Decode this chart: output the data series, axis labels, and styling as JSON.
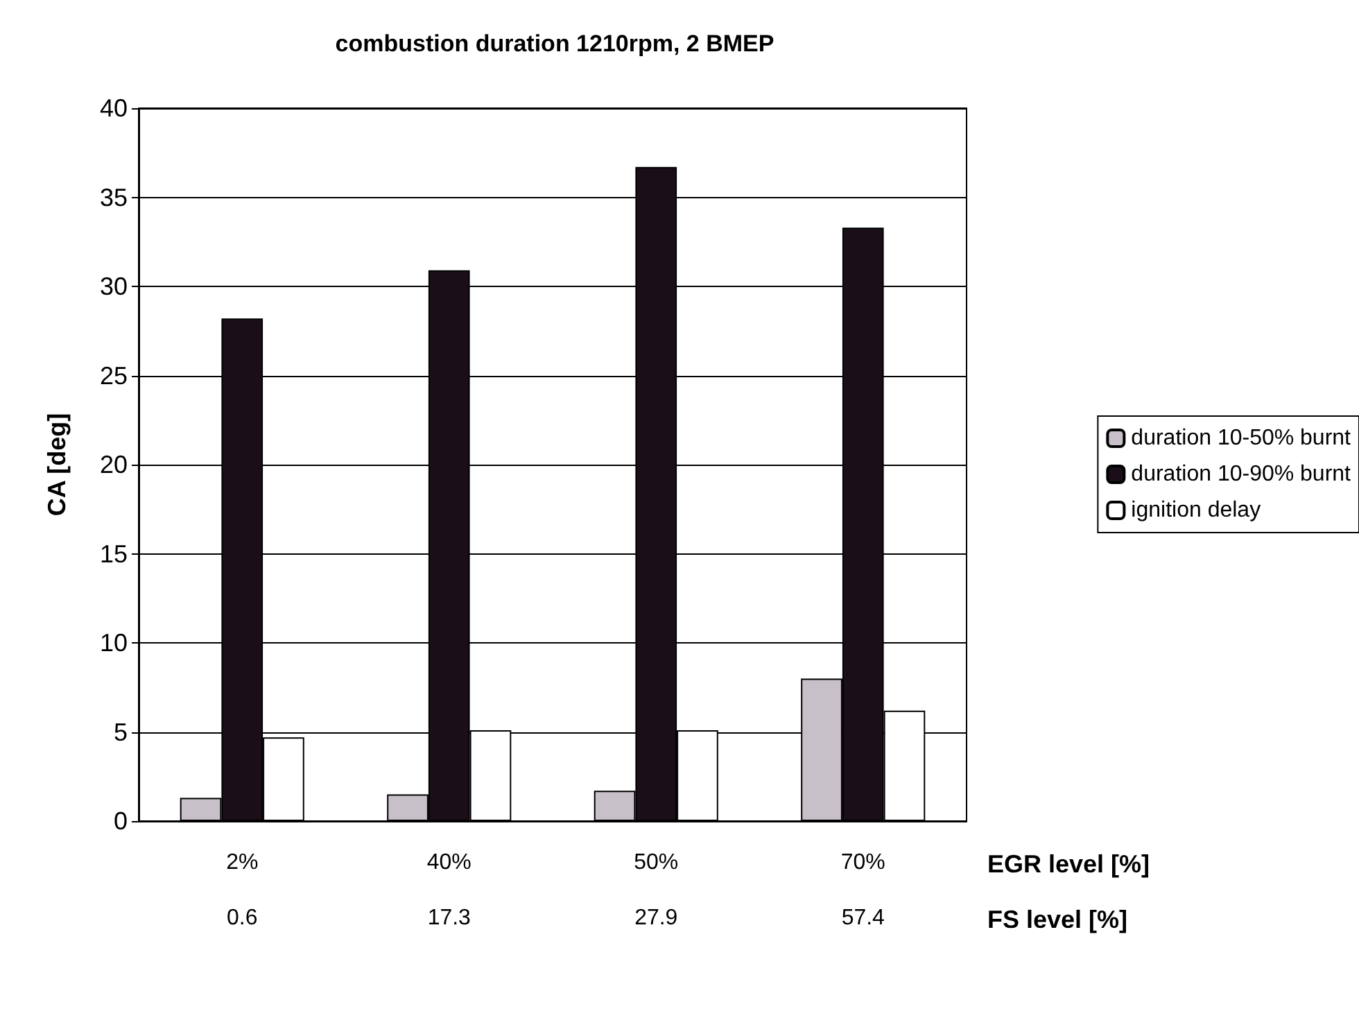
{
  "chart_data": {
    "type": "bar",
    "title": "combustion duration 1210rpm, 2 BMEP",
    "xlabel": "EGR level [%]",
    "ylabel": "CA [deg]",
    "annotations": [
      "FS level [%]"
    ],
    "categories": [
      "2%\n\n0.6",
      "40%\n\n17.3",
      "50%\n\n27.9",
      "70%\n\n57.4"
    ],
    "series": [
      {
        "name": "duration 10-50% burnt",
        "color": "#c8c0c8",
        "values": [
          1.3,
          1.5,
          1.7,
          8.0
        ]
      },
      {
        "name": "duration 10-90% burnt",
        "color": "#1a0f18",
        "values": [
          28.2,
          30.9,
          36.7,
          33.3
        ]
      },
      {
        "name": "ignition delay",
        "color": "#ffffff",
        "values": [
          4.7,
          5.1,
          5.1,
          6.2
        ]
      }
    ],
    "ylim": [
      0,
      40
    ],
    "yticks": [
      0,
      5,
      10,
      15,
      20,
      25,
      30,
      35,
      40
    ],
    "grid": "y",
    "legend": "right"
  }
}
